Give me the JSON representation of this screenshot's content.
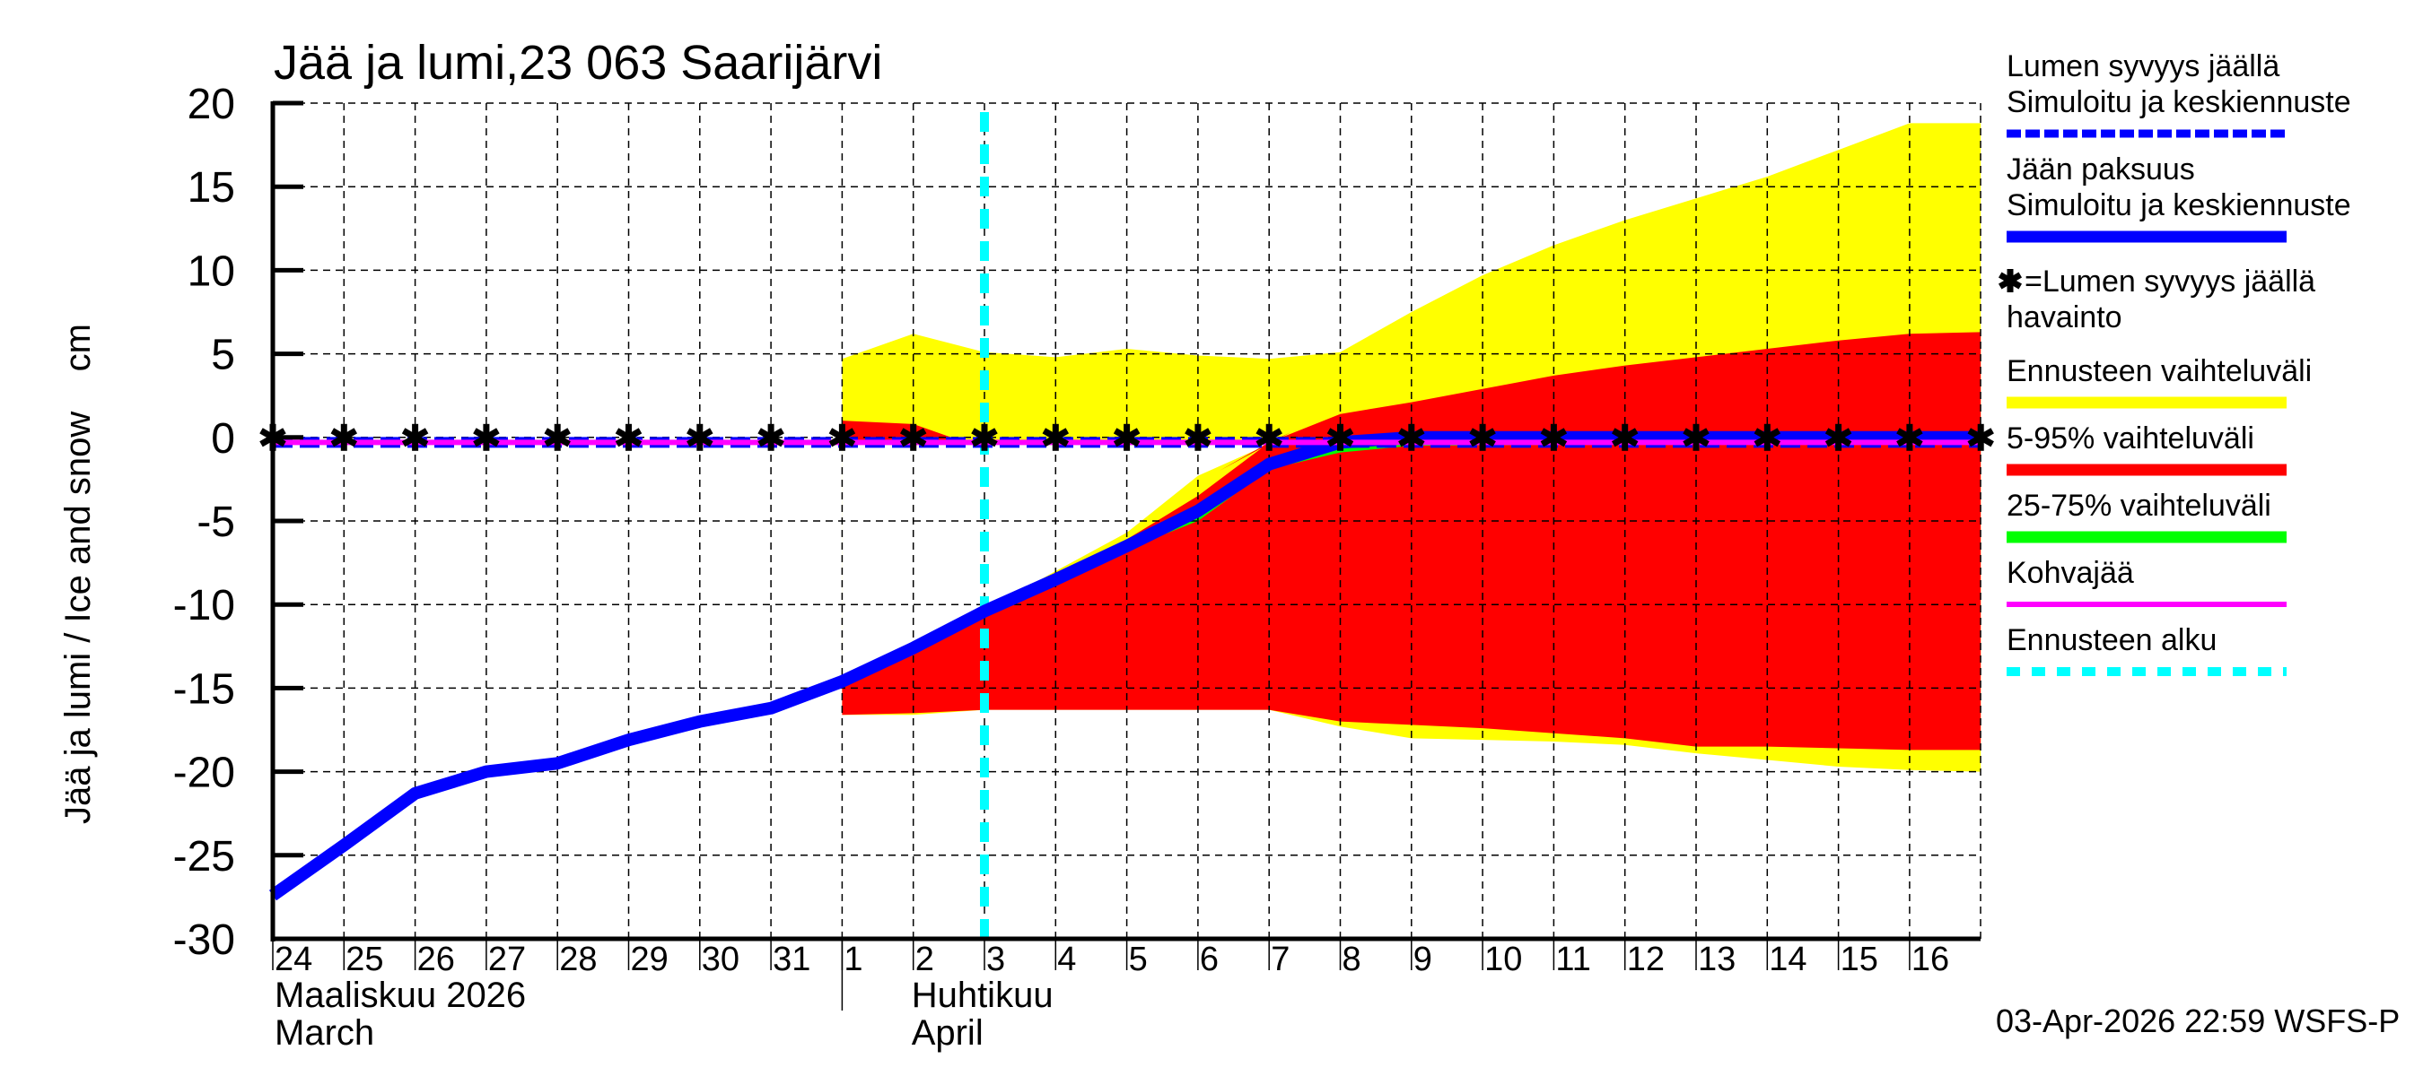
{
  "chart_data": {
    "type": "area",
    "title": "Jää ja lumi,23 063 Saarijärvi",
    "ylabel": "Jää ja lumi / Ice and snow    cm",
    "xlabel": "",
    "ylim": [
      -30,
      20
    ],
    "yticks": [
      20,
      15,
      10,
      5,
      0,
      -5,
      -10,
      -15,
      -20,
      -25,
      -30
    ],
    "grid": true,
    "legend_position": "right",
    "x_tick_labels": [
      "24",
      "25",
      "26",
      "27",
      "28",
      "29",
      "30",
      "31",
      "1",
      "2",
      "3",
      "4",
      "5",
      "6",
      "7",
      "8",
      "9",
      "10",
      "11",
      "12",
      "13",
      "14",
      "15",
      "16"
    ],
    "month_labels": [
      {
        "line1": "Maaliskuu 2026",
        "line2": "March",
        "start_index": 0
      },
      {
        "line1": "Huhtikuu",
        "line2": "April",
        "start_index": 8
      }
    ],
    "x_index_note": "x = day index, 0 = 24 March 2026, 8 = 1 April 2026, 23 = 16 April 2026, plot ends at 24",
    "forecast_start_x": 10,
    "series": [
      {
        "name": "Jään paksuus – Simuloitu ja keskiennuste",
        "kind": "line",
        "color": "#0000ff",
        "width": 14,
        "x": [
          0,
          1,
          2,
          3,
          4,
          5,
          6,
          7,
          8,
          9,
          10,
          11,
          12,
          13,
          14,
          15,
          16,
          17,
          18,
          19,
          20,
          21,
          22,
          23,
          24
        ],
        "values": [
          -27.4,
          -24.4,
          -21.3,
          -20.0,
          -19.5,
          -18.1,
          -17.0,
          -16.2,
          -14.6,
          -12.6,
          -10.4,
          -8.5,
          -6.5,
          -4.4,
          -1.6,
          -0.3,
          0,
          0,
          0,
          0,
          0,
          0,
          0,
          0,
          0
        ]
      },
      {
        "name": "Lumen syvyys jäällä – Simuloitu ja keskiennuste",
        "kind": "dashed-line",
        "color": "#0000ff",
        "width": 8,
        "x": [
          0,
          24
        ],
        "values": [
          -0.3,
          -0.3
        ]
      },
      {
        "name": "Kohvajää",
        "kind": "line",
        "color": "#ff00ff",
        "width": 6,
        "x": [
          0,
          24
        ],
        "values": [
          -0.3,
          -0.3
        ]
      },
      {
        "name": "=Lumen syvyys jäällä havainto",
        "kind": "markers",
        "marker": "asterisk",
        "color": "#000000",
        "x": [
          0,
          1,
          2,
          3,
          4,
          5,
          6,
          7,
          8,
          9,
          10,
          11,
          12,
          13,
          14,
          15,
          16,
          17,
          18,
          19,
          20,
          21,
          22,
          23,
          24
        ],
        "values": [
          0,
          0,
          0,
          0,
          0,
          0,
          0,
          0,
          0,
          0,
          0,
          0,
          0,
          0,
          0,
          0,
          0,
          0,
          0,
          0,
          0,
          0,
          0,
          0,
          0
        ]
      }
    ],
    "bands": [
      {
        "name": "Ennusteen vaihteluväli",
        "color": "#ffff00",
        "upper_x": [
          8,
          9,
          10,
          11,
          12,
          13,
          14,
          15,
          16,
          17,
          18,
          19,
          20,
          21,
          22,
          23,
          24
        ],
        "upper": [
          4.7,
          6.2,
          5.1,
          4.8,
          5.3,
          4.9,
          4.7,
          5.1,
          7.5,
          9.7,
          11.5,
          13.0,
          14.3,
          15.6,
          17.2,
          18.8,
          18.8
        ],
        "lower_x": [
          8,
          9,
          10,
          11,
          12,
          13,
          14,
          15,
          16,
          17,
          18,
          19,
          20,
          21,
          22,
          23,
          24
        ],
        "lower": [
          -16.6,
          -16.6,
          -16.3,
          -16.3,
          -16.3,
          -16.3,
          -16.3,
          -17.3,
          -18.0,
          -18.1,
          -18.2,
          -18.4,
          -18.9,
          -19.3,
          -19.7,
          -19.9,
          -20.0
        ],
        "gap_upper_x": [
          11,
          12,
          13,
          14
        ],
        "gap_upper": [
          -8.0,
          -5.7,
          -2.3,
          -0.4
        ]
      },
      {
        "name": "5-95% vaihteluväli",
        "color": "#ff0000",
        "upper_x": [
          8,
          9,
          9.6,
          10,
          11,
          12,
          13,
          13.3,
          14,
          15,
          16,
          17,
          18,
          19,
          20,
          21,
          22,
          23,
          24
        ],
        "upper": [
          1.0,
          0.8,
          -0.1,
          -10.4,
          -8.6,
          -6.1,
          -3.5,
          -2.0,
          -0.3,
          1.4,
          2.1,
          2.9,
          3.7,
          4.3,
          4.8,
          5.3,
          5.8,
          6.2,
          6.3
        ],
        "lower_x": [
          8,
          9,
          10,
          11,
          12,
          13,
          14,
          15,
          16,
          17,
          18,
          19,
          20,
          21,
          22,
          23,
          24
        ],
        "lower": [
          -16.6,
          -16.5,
          -16.3,
          -16.3,
          -16.3,
          -16.3,
          -16.3,
          -17.0,
          -17.2,
          -17.4,
          -17.7,
          -18.0,
          -18.5,
          -18.5,
          -18.6,
          -18.7,
          -18.7
        ]
      },
      {
        "name": "25-75% vaihteluväli",
        "color": "#00ff00",
        "upper_x": [
          12,
          13,
          14,
          15,
          16,
          24
        ],
        "upper": [
          -6.5,
          -4.4,
          -1.6,
          -0.3,
          0,
          0
        ],
        "lower_x": [
          12,
          13,
          14,
          15,
          16,
          24
        ],
        "lower": [
          -6.7,
          -5.0,
          -1.9,
          -0.9,
          -0.5,
          -0.3
        ]
      }
    ],
    "legend": [
      {
        "label_lines": [
          "Lumen syvyys jäällä",
          "Simuloitu ja keskiennuste"
        ],
        "color": "#0000ff",
        "style": "dashed"
      },
      {
        "label_lines": [
          "Jään paksuus",
          "Simuloitu ja keskiennuste"
        ],
        "color": "#0000ff",
        "style": "thick"
      },
      {
        "label_lines": [
          "=Lumen syvyys jäällä",
          "havainto"
        ],
        "color": "#000000",
        "style": "asterisk"
      },
      {
        "label_lines": [
          "Ennusteen vaihteluväli"
        ],
        "color": "#ffff00",
        "style": "thick"
      },
      {
        "label_lines": [
          "5-95% vaihteluväli"
        ],
        "color": "#ff0000",
        "style": "thick"
      },
      {
        "label_lines": [
          "25-75% vaihteluväli"
        ],
        "color": "#00ff00",
        "style": "thick"
      },
      {
        "label_lines": [
          "Kohvajää"
        ],
        "color": "#ff00ff",
        "style": "thin"
      },
      {
        "label_lines": [
          "Ennusteen alku"
        ],
        "color": "#00ffff",
        "style": "dotted"
      }
    ],
    "footer": "03-Apr-2026 22:59 WSFS-P"
  }
}
